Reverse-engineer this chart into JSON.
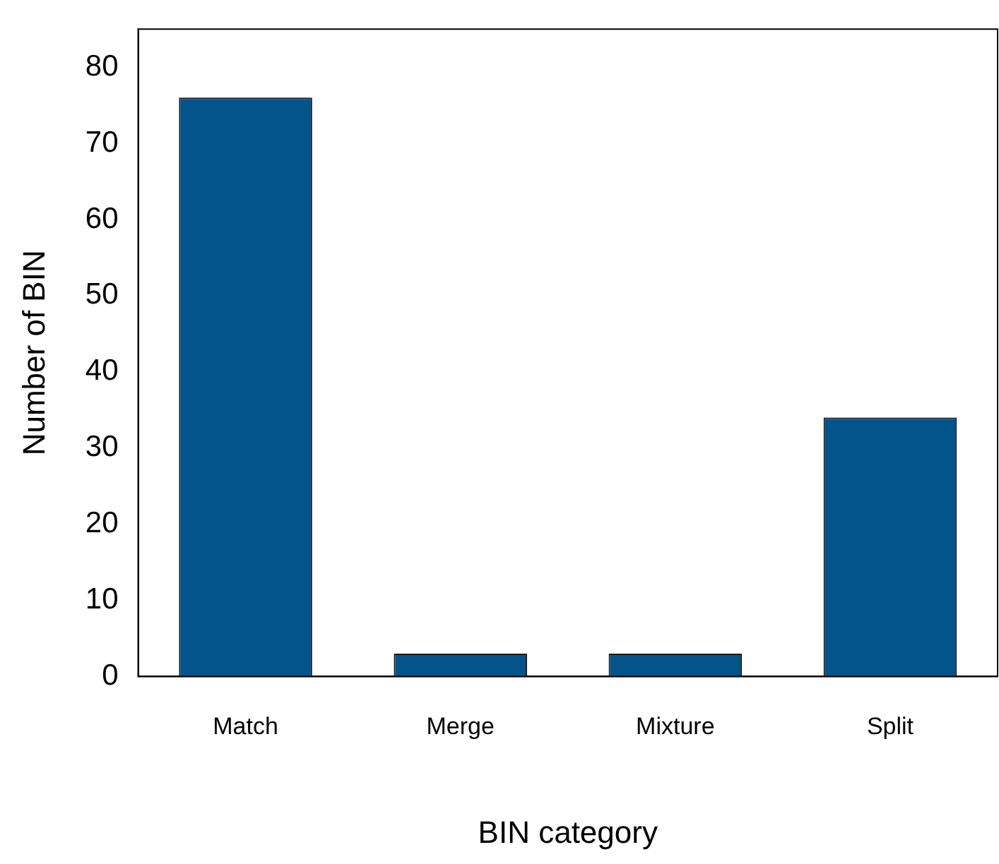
{
  "chart_data": {
    "type": "bar",
    "xlabel": "BIN category",
    "ylabel": "Number of BIN",
    "categories": [
      "Match",
      "Merge",
      "Mixture",
      "Split"
    ],
    "values": [
      76,
      3,
      3,
      34
    ],
    "color": "#02548b",
    "ylim": [
      0,
      85
    ],
    "yticks": [
      0,
      10,
      20,
      30,
      40,
      50,
      60,
      70,
      80
    ],
    "grid": false,
    "legend": false
  }
}
